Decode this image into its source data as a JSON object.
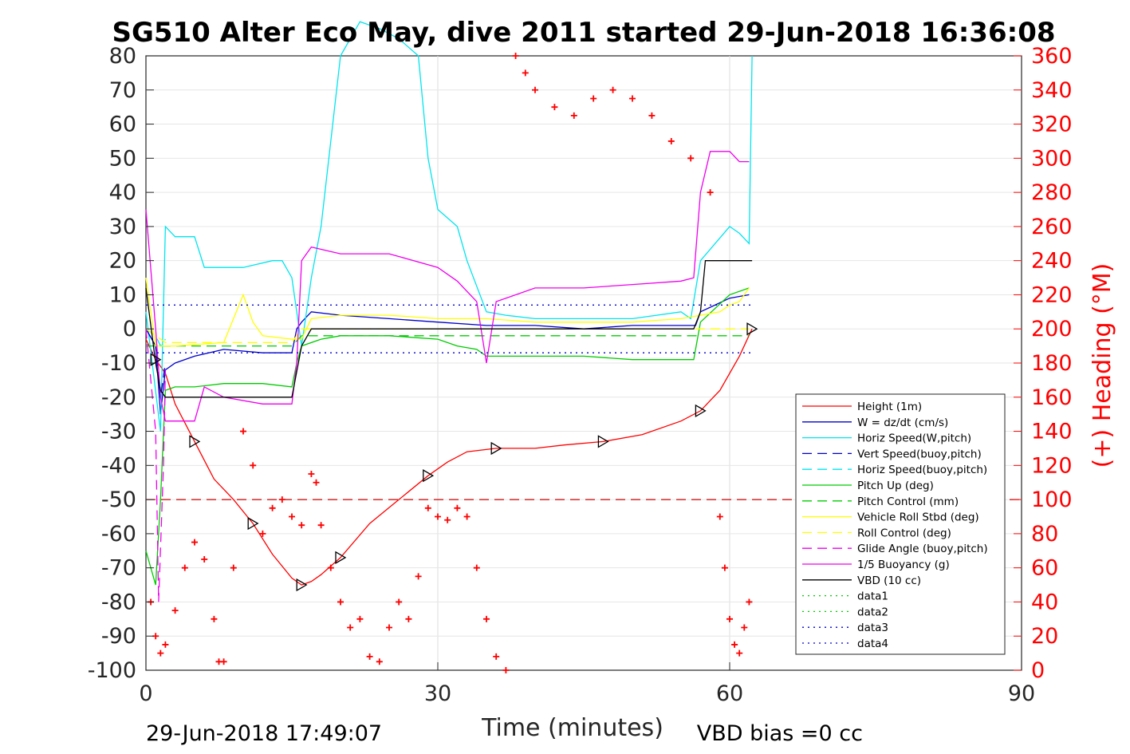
{
  "chart_data": {
    "type": "line",
    "title": "SG510 Alter Eco May, dive 2011 started 29-Jun-2018 16:36:08",
    "xlabel": "Time (minutes)",
    "ylabel_right": "(+) Heading (°M)",
    "xlim": [
      0,
      90
    ],
    "ylim": [
      -100,
      80
    ],
    "ylim_right": [
      0,
      360
    ],
    "x_ticks": [
      "0",
      "30",
      "60",
      "90"
    ],
    "y_ticks": [
      "80",
      "70",
      "60",
      "50",
      "40",
      "30",
      "20",
      "10",
      "0",
      "-10",
      "-20",
      "-30",
      "-40",
      "-50",
      "-60",
      "-70",
      "-80",
      "-90",
      "-100"
    ],
    "y_ticks_right": [
      "360",
      "340",
      "320",
      "300",
      "280",
      "260",
      "240",
      "220",
      "200",
      "180",
      "160",
      "140",
      "120",
      "100",
      "80",
      "60",
      "40",
      "20",
      "0"
    ],
    "grid": true,
    "legend_position": "lower-right",
    "footer_left": "29-Jun-2018 17:49:07",
    "footer_right": "VBD bias =0 cc",
    "series": [
      {
        "name": "Height (1m)",
        "color": "#ff0000",
        "style": "solid",
        "x": [
          0,
          1,
          2,
          3,
          5,
          7,
          9,
          11,
          13,
          15,
          16,
          17,
          18,
          20,
          23,
          26,
          29,
          31,
          33,
          36,
          40,
          43,
          47,
          51,
          55,
          57,
          59,
          61,
          62.3
        ],
        "y": [
          -3,
          -9,
          -13,
          -22,
          -33,
          -44,
          -50,
          -57,
          -66,
          -73,
          -75,
          -74,
          -72,
          -67,
          -57,
          -50,
          -43,
          -39,
          -36,
          -35,
          -35,
          -34,
          -33,
          -31,
          -27,
          -24,
          -18,
          -8,
          0
        ]
      },
      {
        "name": "W = dz/dt (cm/s)",
        "color": "#0000cc",
        "style": "solid",
        "x": [
          0,
          1,
          1.5,
          2,
          3,
          5,
          8,
          12,
          15,
          15.5,
          16,
          17,
          20,
          25,
          30,
          35,
          40,
          45,
          50,
          55,
          56.5,
          57,
          60,
          62
        ],
        "y": [
          0,
          -5,
          -25,
          -12,
          -10,
          -8,
          -6,
          -7,
          -7,
          0,
          2,
          5,
          4,
          3,
          2,
          1,
          1,
          0,
          1,
          1,
          1,
          5,
          9,
          10
        ]
      },
      {
        "name": "Horiz Speed(W,pitch)",
        "color": "#00e5ee",
        "style": "solid",
        "x": [
          0,
          1.5,
          2,
          3,
          5,
          6,
          10,
          13,
          14,
          15,
          16,
          17,
          18,
          19,
          20,
          22,
          24,
          26,
          28,
          29,
          30,
          32,
          33,
          35,
          37,
          40,
          45,
          50,
          55,
          56,
          57,
          60,
          61,
          62,
          62.3
        ],
        "y": [
          5,
          -30,
          30,
          27,
          27,
          18,
          18,
          20,
          20,
          15,
          -5,
          15,
          30,
          55,
          80,
          90,
          88,
          85,
          80,
          50,
          35,
          30,
          20,
          5,
          4,
          3,
          3,
          3,
          5,
          3,
          20,
          30,
          28,
          25,
          80
        ]
      },
      {
        "name": "Vert Speed(buoy,pitch)",
        "color": "#0000cc",
        "style": "dash",
        "x": [
          0,
          1,
          1.5,
          2
        ],
        "y": [
          0,
          -5,
          -20,
          -10
        ]
      },
      {
        "name": "Horiz Speed(buoy,pitch)",
        "color": "#00e5ee",
        "style": "dash",
        "x": [
          0,
          1,
          1.5,
          2
        ],
        "y": [
          0,
          -2,
          -5,
          -3
        ]
      },
      {
        "name": "Pitch Up (deg)",
        "color": "#00cc00",
        "style": "solid",
        "x": [
          0,
          1,
          1.5,
          2,
          3,
          5,
          8,
          12,
          15,
          15.5,
          16,
          18,
          20,
          25,
          30,
          32,
          34,
          35,
          40,
          45,
          50,
          55,
          56.3,
          57,
          60,
          62
        ],
        "y": [
          -65,
          -75,
          -50,
          -18,
          -17,
          -17,
          -16,
          -16,
          -17,
          -10,
          -5,
          -3,
          -2,
          -2,
          -3,
          -5,
          -6,
          -8,
          -8,
          -8,
          -9,
          -9,
          -9,
          2,
          10,
          12
        ]
      },
      {
        "name": "Pitch Control (mm)",
        "color": "#00cc00",
        "style": "dash",
        "x": [
          0,
          2,
          2.5,
          15,
          16,
          62
        ],
        "y": [
          -5,
          -5,
          -5,
          -5,
          -2,
          -2
        ]
      },
      {
        "name": "Vehicle Roll Stbd (deg)",
        "color": "#ffff00",
        "style": "solid",
        "x": [
          0,
          1,
          2,
          3,
          8,
          9,
          10,
          11,
          12,
          15,
          16,
          17,
          20,
          25,
          30,
          35,
          40,
          45,
          50,
          55,
          57,
          59,
          60,
          61,
          62
        ],
        "y": [
          15,
          -5,
          -5,
          -5,
          -4,
          3,
          10,
          2,
          -2,
          -3,
          -3,
          3,
          4,
          4,
          3,
          3,
          2,
          2,
          2,
          3,
          4,
          5,
          7,
          8,
          12
        ]
      },
      {
        "name": "Roll Control (deg)",
        "color": "#ffff00",
        "style": "dash",
        "x": [
          0,
          2,
          3,
          15,
          16,
          62
        ],
        "y": [
          0,
          -4,
          -4,
          -4,
          0,
          0
        ]
      },
      {
        "name": "Glide Angle (buoy,pitch)",
        "color": "#ee00ee",
        "style": "dash",
        "x": [
          0,
          1,
          1.3,
          1.8,
          2
        ],
        "y": [
          0,
          -30,
          -80,
          -40,
          -12
        ]
      },
      {
        "name": "1/5 Buoyancy (g)",
        "color": "#ee00ee",
        "style": "solid",
        "x": [
          0,
          1,
          1.5,
          2,
          3,
          5,
          6,
          8,
          12,
          15,
          15.5,
          16,
          17,
          20,
          25,
          30,
          32,
          34,
          35,
          36,
          40,
          45,
          50,
          55,
          56.3,
          57,
          58,
          60,
          61,
          62
        ],
        "y": [
          35,
          0,
          -20,
          -27,
          -27,
          -27,
          -17,
          -20,
          -22,
          -22,
          -10,
          20,
          24,
          22,
          22,
          18,
          14,
          8,
          -10,
          8,
          12,
          12,
          13,
          14,
          15,
          40,
          52,
          52,
          49,
          49
        ]
      },
      {
        "name": "VBD (10 cc)",
        "color": "#000000",
        "style": "solid",
        "x": [
          0,
          1,
          1.5,
          2,
          15,
          16,
          17,
          56.3,
          57,
          57.5,
          62.3
        ],
        "y": [
          12,
          -10,
          -18,
          -20,
          -20,
          -5,
          0,
          0,
          5,
          20,
          20
        ]
      },
      {
        "name": "data1",
        "color": "#00cc00",
        "style": "dot",
        "x": [],
        "y": []
      },
      {
        "name": "data2",
        "color": "#00cc00",
        "style": "dot",
        "x": [],
        "y": []
      },
      {
        "name": "data3",
        "color": "#0000cc",
        "style": "dot",
        "x": [
          0,
          62.3
        ],
        "y": [
          7,
          7
        ]
      },
      {
        "name": "data4",
        "color": "#0000cc",
        "style": "dot",
        "x": [
          0,
          62.3
        ],
        "y": [
          -7,
          -7
        ]
      }
    ],
    "reference_line": {
      "y": -50,
      "color": "#cc0000",
      "style": "dash"
    },
    "heading": {
      "axis": "right",
      "color": "#ff0000",
      "marker": "+",
      "x": [
        0.5,
        1,
        1.5,
        2,
        3,
        4,
        5,
        6,
        7,
        7.5,
        8,
        9,
        10,
        11,
        12,
        13,
        14,
        15,
        16,
        17,
        17.5,
        18,
        19,
        20,
        21,
        22,
        23,
        24,
        25,
        26,
        27,
        28,
        29,
        30,
        31,
        32,
        33,
        34,
        35,
        36,
        37,
        38,
        39,
        40,
        42,
        44,
        46,
        48,
        50,
        52,
        54,
        56,
        58,
        59,
        59.5,
        60,
        60.5,
        61,
        61.5,
        62
      ],
      "y": [
        40,
        20,
        10,
        15,
        35,
        60,
        75,
        65,
        30,
        5,
        5,
        60,
        140,
        120,
        80,
        95,
        100,
        90,
        85,
        115,
        110,
        85,
        60,
        40,
        25,
        30,
        8,
        5,
        25,
        40,
        30,
        55,
        95,
        90,
        88,
        95,
        90,
        60,
        30,
        8,
        0,
        360,
        350,
        340,
        330,
        325,
        335,
        340,
        335,
        325,
        310,
        300,
        280,
        90,
        60,
        30,
        15,
        10,
        25,
        40
      ]
    }
  }
}
